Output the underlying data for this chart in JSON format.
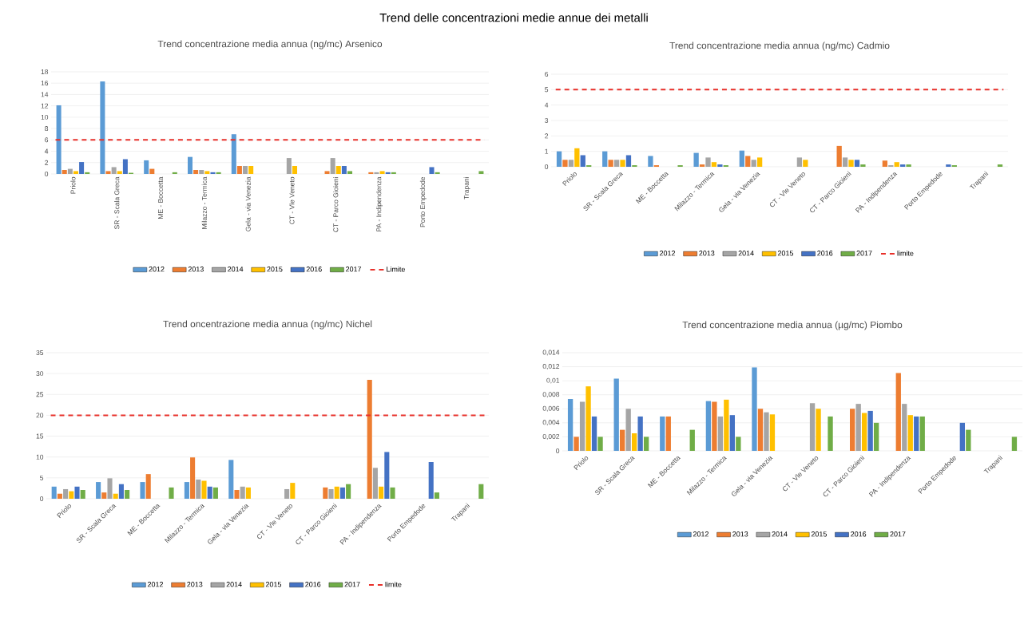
{
  "chart_data": [
    {
      "type": "bar",
      "title": "Trend concentrazione media annua (ng/mc) Arsenico",
      "annotations": [
        "Trend delle concentrazioni medie annue dei metalli"
      ],
      "categories": [
        "Priolo",
        "SR - Scala Greca",
        "ME - Boccetta",
        "Milazzo - Termica",
        "Gela - via Venezia",
        "CT - Vle Veneto",
        "CT - Parco Gioieni",
        "PA - Indipendenza",
        "Porto Empedode",
        "Trapani"
      ],
      "ylim": [
        0,
        18
      ],
      "yticks": [
        0,
        2,
        4,
        6,
        8,
        10,
        12,
        14,
        16,
        18
      ],
      "grid": "y",
      "legend": "bottom",
      "series": [
        {
          "name": "2012",
          "color": "#5b9bd5",
          "values": [
            12.1,
            16.3,
            2.4,
            3.0,
            7.0,
            null,
            null,
            null,
            null,
            null
          ]
        },
        {
          "name": "2013",
          "color": "#ed7d31",
          "values": [
            0.7,
            0.5,
            0.9,
            0.7,
            1.4,
            null,
            0.5,
            0.3,
            null,
            null
          ]
        },
        {
          "name": "2014",
          "color": "#a5a5a5",
          "values": [
            0.9,
            1.2,
            null,
            0.7,
            1.4,
            2.8,
            2.8,
            0.3,
            null,
            null
          ]
        },
        {
          "name": "2015",
          "color": "#ffc000",
          "values": [
            0.5,
            0.5,
            null,
            0.5,
            1.4,
            1.4,
            1.4,
            0.5,
            null,
            null
          ]
        },
        {
          "name": "2016",
          "color": "#4472c4",
          "values": [
            2.1,
            2.6,
            null,
            0.3,
            null,
            null,
            1.4,
            0.3,
            1.2,
            null
          ]
        },
        {
          "name": "2017",
          "color": "#70ad47",
          "values": [
            0.3,
            0.2,
            0.3,
            0.3,
            null,
            null,
            0.5,
            0.3,
            0.3,
            0.5
          ]
        }
      ],
      "ref_lines": [
        {
          "axis": "y",
          "value": 6,
          "label": "Limite",
          "color": "#e8302a",
          "line_style": "dashed"
        }
      ]
    },
    {
      "type": "bar",
      "title": "Trend concentrazione media annua (ng/mc) Cadmio",
      "categories": [
        "Priolo",
        "SR - Scala Greca",
        "ME - Boccetta",
        "Milazzo - Termica",
        "Gela - via Venezia",
        "CT - Vle Veneto",
        "CT - Parco Gioieni",
        "PA - Indipendenza",
        "Porto Empedode",
        "Trapani"
      ],
      "ylim": [
        0,
        6
      ],
      "yticks": [
        0,
        1,
        2,
        3,
        4,
        5,
        6
      ],
      "grid": "y",
      "legend": "bottom",
      "series": [
        {
          "name": "2012",
          "color": "#5b9bd5",
          "values": [
            1.0,
            1.0,
            0.7,
            0.9,
            1.05,
            null,
            null,
            null,
            null,
            null
          ]
        },
        {
          "name": "2013",
          "color": "#ed7d31",
          "values": [
            0.45,
            0.45,
            0.1,
            0.15,
            0.7,
            null,
            1.35,
            0.4,
            null,
            null
          ]
        },
        {
          "name": "2014",
          "color": "#a5a5a5",
          "values": [
            0.45,
            0.45,
            null,
            0.6,
            0.45,
            0.6,
            0.6,
            0.1,
            null,
            null
          ]
        },
        {
          "name": "2015",
          "color": "#ffc000",
          "values": [
            1.2,
            0.45,
            null,
            0.3,
            0.6,
            0.45,
            0.45,
            0.3,
            null,
            null
          ]
        },
        {
          "name": "2016",
          "color": "#4472c4",
          "values": [
            0.75,
            0.75,
            null,
            0.15,
            null,
            null,
            0.45,
            0.15,
            0.15,
            null
          ]
        },
        {
          "name": "2017",
          "color": "#70ad47",
          "values": [
            0.1,
            0.1,
            0.1,
            0.1,
            null,
            null,
            0.15,
            0.15,
            0.1,
            0.15
          ]
        }
      ],
      "ref_lines": [
        {
          "axis": "y",
          "value": 5,
          "label": "limite",
          "color": "#e8302a",
          "line_style": "dashed"
        }
      ]
    },
    {
      "type": "bar",
      "title": "Trend oncentrazione media annua (ng/mc) Nichel",
      "categories": [
        "Priolo",
        "SR - Scala Greca",
        "ME - Boccetta",
        "Milazzo - Termica",
        "Gela - via Venezia",
        "CT - Vle Veneto",
        "CT - Parco Gioieni",
        "PA - Indipendenza",
        "Porto Empedode",
        "Trapani"
      ],
      "ylim": [
        0,
        35
      ],
      "yticks": [
        0,
        5,
        10,
        15,
        20,
        25,
        30,
        35
      ],
      "grid": "y",
      "legend": "bottom",
      "series": [
        {
          "name": "2012",
          "color": "#5b9bd5",
          "values": [
            2.9,
            4.0,
            4.0,
            4.0,
            9.3,
            null,
            null,
            null,
            null,
            null
          ]
        },
        {
          "name": "2013",
          "color": "#ed7d31",
          "values": [
            1.2,
            1.5,
            5.9,
            9.9,
            2.1,
            null,
            2.7,
            28.5,
            null,
            null
          ]
        },
        {
          "name": "2014",
          "color": "#a5a5a5",
          "values": [
            2.3,
            4.9,
            null,
            4.6,
            2.9,
            2.3,
            2.3,
            7.4,
            null,
            null
          ]
        },
        {
          "name": "2015",
          "color": "#ffc000",
          "values": [
            1.8,
            1.2,
            null,
            4.3,
            2.7,
            3.8,
            2.9,
            2.9,
            null,
            null
          ]
        },
        {
          "name": "2016",
          "color": "#4472c4",
          "values": [
            2.9,
            3.5,
            null,
            2.9,
            null,
            null,
            2.7,
            11.2,
            8.8,
            null
          ]
        },
        {
          "name": "2017",
          "color": "#70ad47",
          "values": [
            2.1,
            2.1,
            2.7,
            2.7,
            null,
            null,
            3.5,
            2.7,
            1.5,
            3.5
          ]
        }
      ],
      "ref_lines": [
        {
          "axis": "y",
          "value": 20,
          "label": "limite",
          "color": "#e8302a",
          "line_style": "dashed"
        }
      ]
    },
    {
      "type": "bar",
      "title": "Trend concentrazione media annua (µg/mc) Piombo",
      "categories": [
        "Priolo",
        "SR - Scala Greca",
        "ME - Boccetta",
        "Milazzo - Termica",
        "Gela - via Venezia",
        "CT - Vle Veneto",
        "CT - Parco Gioieni",
        "PA - Indipendenza",
        "Porto Empedode",
        "Trapani"
      ],
      "ylim": [
        0,
        0.014
      ],
      "yticks": [
        0,
        {
          "value": 0.002,
          "label": "0,002"
        },
        {
          "value": 0.004,
          "label": "0,004"
        },
        {
          "value": 0.006,
          "label": "0,006"
        },
        {
          "value": 0.008,
          "label": "0,008"
        },
        {
          "value": 0.01,
          "label": "0,01"
        },
        {
          "value": 0.012,
          "label": "0,012"
        },
        {
          "value": 0.014,
          "label": "0,014"
        }
      ],
      "grid": "y",
      "legend": "bottom",
      "series": [
        {
          "name": "2012",
          "color": "#5b9bd5",
          "values": [
            0.0074,
            0.0103,
            0.0049,
            0.0071,
            0.0119,
            null,
            null,
            null,
            null,
            null
          ]
        },
        {
          "name": "2013",
          "color": "#ed7d31",
          "values": [
            0.002,
            0.003,
            0.0049,
            0.007,
            0.006,
            null,
            0.006,
            0.0111,
            null,
            null
          ]
        },
        {
          "name": "2014",
          "color": "#a5a5a5",
          "values": [
            0.007,
            0.006,
            null,
            0.0049,
            0.0055,
            0.0068,
            0.0067,
            0.0067,
            null,
            null
          ]
        },
        {
          "name": "2015",
          "color": "#ffc000",
          "values": [
            0.0092,
            0.0025,
            null,
            0.0073,
            0.0052,
            0.006,
            0.0054,
            0.0051,
            null,
            null
          ]
        },
        {
          "name": "2016",
          "color": "#4472c4",
          "values": [
            0.0049,
            0.0049,
            null,
            0.0051,
            null,
            null,
            0.0057,
            0.0049,
            0.004,
            null
          ]
        },
        {
          "name": "2017",
          "color": "#70ad47",
          "values": [
            0.002,
            0.002,
            0.003,
            0.002,
            null,
            0.0049,
            0.004,
            0.0049,
            0.003,
            0.002
          ]
        }
      ]
    }
  ]
}
